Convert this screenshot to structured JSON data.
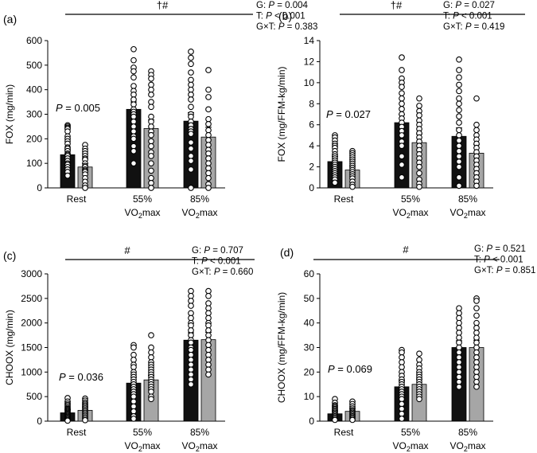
{
  "figure": {
    "colors": {
      "black_bar": "#111111",
      "grey_bar": "#a6a6a6",
      "axis": "#000000",
      "point_fill": "#ffffff"
    }
  },
  "chart_data": [
    {
      "type": "bar",
      "panel_label": "(a)",
      "ylabel": "FOX (mg/min)",
      "ylim": [
        0,
        600
      ],
      "yticks": [
        0,
        100,
        200,
        300,
        400,
        500,
        600
      ],
      "categories": [
        [
          "Rest"
        ],
        [
          "55%",
          "VO2max"
        ],
        [
          "85%",
          "VO2max"
        ]
      ],
      "series": [
        {
          "values": [
            135,
            320,
            272
          ],
          "err": [
            20,
            30,
            35
          ],
          "points": [
            [
              255,
              250,
              245,
              240,
              230,
              210,
              200,
              190,
              180,
              165,
              160,
              150,
              140,
              135,
              130,
              120,
              110,
              100,
              95,
              85,
              75,
              65,
              50
            ],
            [
              565,
              520,
              490,
              475,
              450,
              415,
              395,
              380,
              360,
              340,
              320,
              310,
              300,
              290,
              270,
              250,
              230,
              210,
              200,
              170,
              150,
              100
            ],
            [
              555,
              530,
              505,
              470,
              440,
              420,
              400,
              380,
              360,
              330,
              300,
              290,
              270,
              255,
              240,
              230,
              220,
              185,
              160,
              130,
              110,
              75,
              0
            ]
          ]
        },
        {
          "values": [
            85,
            242,
            207
          ],
          "err": [
            15,
            35,
            40
          ],
          "points": [
            [
              175,
              160,
              150,
              140,
              130,
              120,
              115,
              100,
              90,
              85,
              75,
              70,
              65,
              55,
              40,
              25,
              10,
              0
            ],
            [
              475,
              460,
              445,
              420,
              400,
              380,
              350,
              330,
              290,
              270,
              250,
              230,
              215,
              190,
              170,
              145,
              130,
              100,
              70,
              40,
              20,
              0
            ],
            [
              480,
              400,
              370,
              320,
              280,
              260,
              235,
              215,
              195,
              175,
              155,
              140,
              120,
              100,
              80,
              60,
              40,
              15,
              0
            ]
          ]
        }
      ],
      "within_annotation": "P = 0.005",
      "bracket_symbol": "†#",
      "stats": [
        "G: P = 0.004",
        "T: P < 0.001",
        "G×T: P = 0.383"
      ]
    },
    {
      "type": "bar",
      "panel_label": "(b)",
      "ylabel": "FOX (mg/FFM-kg/min)",
      "ylim": [
        0,
        14
      ],
      "yticks": [
        0,
        2,
        4,
        6,
        8,
        10,
        12,
        14
      ],
      "categories": [
        [
          "Rest"
        ],
        [
          "55%",
          "VO2max"
        ],
        [
          "85%",
          "VO2max"
        ]
      ],
      "series": [
        {
          "values": [
            2.5,
            6.2,
            4.9
          ],
          "err": [
            0.5,
            0.8,
            0.8
          ],
          "points": [
            [
              5.0,
              4.8,
              4.5,
              4.2,
              4.0,
              3.8,
              3.5,
              3.2,
              3.0,
              2.8,
              2.6,
              2.4,
              2.2,
              2.0,
              1.8,
              1.6,
              1.4,
              1.2,
              1.0,
              0.8,
              0.5
            ],
            [
              12.4,
              11.2,
              10.4,
              10.0,
              9.6,
              9.0,
              8.5,
              8.0,
              7.5,
              7.0,
              6.6,
              6.2,
              5.8,
              5.4,
              5.0,
              4.4,
              4.0,
              3.0,
              2.2,
              1.0
            ],
            [
              12.2,
              11.2,
              10.5,
              9.8,
              9.2,
              8.5,
              8.0,
              7.4,
              6.8,
              6.2,
              5.5,
              5.0,
              4.5,
              4.0,
              3.5,
              3.0,
              2.5,
              2.0,
              1.0,
              0.2
            ]
          ]
        },
        {
          "values": [
            1.7,
            4.3,
            3.3
          ],
          "err": [
            0.4,
            0.8,
            0.8
          ],
          "points": [
            [
              3.5,
              3.3,
              3.1,
              2.9,
              2.7,
              2.5,
              2.3,
              2.1,
              1.9,
              1.7,
              1.5,
              1.3,
              1.1,
              0.9,
              0.6,
              0.3,
              0.1
            ],
            [
              8.5,
              7.8,
              7.3,
              6.9,
              6.4,
              6.0,
              5.6,
              5.2,
              4.8,
              4.4,
              4.0,
              3.6,
              3.2,
              2.8,
              2.4,
              2.0,
              1.4,
              0.8,
              0.4,
              0.1
            ],
            [
              8.5,
              6.0,
              5.5,
              5.0,
              4.6,
              4.2,
              3.8,
              3.4,
              3.0,
              2.6,
              2.2,
              1.8,
              1.4,
              1.0,
              0.6,
              0.2
            ]
          ]
        }
      ],
      "within_annotation": "P = 0.027",
      "bracket_symbol": "†#",
      "stats": [
        "G: P = 0.027",
        "T: P < 0.001",
        "G×T: P = 0.419"
      ]
    },
    {
      "type": "bar",
      "panel_label": "(c)",
      "ylabel": "CHOOX (mg/min)",
      "ylim": [
        0,
        3000
      ],
      "yticks": [
        0,
        500,
        1000,
        1500,
        2000,
        2500,
        3000
      ],
      "categories": [
        [
          "Rest"
        ],
        [
          "55%",
          "VO2max"
        ],
        [
          "85%",
          "VO2max"
        ]
      ],
      "series": [
        {
          "values": [
            170,
            775,
            1650
          ],
          "err": [
            60,
            120,
            150
          ],
          "points": [
            [
              470,
              400,
              360,
              330,
              300,
              270,
              250,
              230,
              210,
              190,
              170,
              150,
              130,
              110,
              90,
              70,
              50,
              30,
              10
            ],
            [
              1550,
              1500,
              1350,
              1250,
              1150,
              1100,
              1000,
              950,
              900,
              850,
              800,
              750,
              700,
              650,
              600,
              550,
              500,
              400,
              300,
              200,
              100,
              50
            ],
            [
              2650,
              2550,
              2450,
              2350,
              2200,
              2100,
              2000,
              1950,
              1850,
              1750,
              1650,
              1600,
              1500,
              1450,
              1350,
              1250,
              1150,
              1050,
              950,
              850,
              750
            ]
          ]
        },
        {
          "values": [
            220,
            840,
            1660
          ],
          "err": [
            70,
            90,
            150
          ],
          "points": [
            [
              460,
              420,
              380,
              350,
              320,
              290,
              260,
              230,
              200,
              170,
              140,
              110,
              80,
              50,
              20
            ],
            [
              1750,
              1500,
              1400,
              1300,
              1200,
              1150,
              1100,
              1050,
              1000,
              950,
              900,
              850,
              800,
              750,
              700,
              650,
              600,
              500,
              450
            ],
            [
              2650,
              2550,
              2400,
              2300,
              2200,
              2100,
              2000,
              1950,
              1850,
              1750,
              1650,
              1550,
              1450,
              1350,
              1250,
              1150,
              1050,
              950
            ]
          ]
        }
      ],
      "within_annotation": "P = 0.036",
      "bracket_symbol": "#",
      "stats": [
        "G: P = 0.707",
        "T: P < 0.001",
        "G×T: P = 0.660"
      ]
    },
    {
      "type": "bar",
      "panel_label": "(d)",
      "ylabel": "CHOOX (mg/FFM-kg/min)",
      "ylim": [
        0,
        60
      ],
      "yticks": [
        0,
        10,
        20,
        30,
        40,
        50,
        60
      ],
      "categories": [
        [
          "Rest"
        ],
        [
          "55%",
          "VO2max"
        ],
        [
          "85%",
          "VO2max"
        ]
      ],
      "series": [
        {
          "values": [
            3,
            14,
            30
          ],
          "err": [
            1.2,
            2.5,
            2.8
          ],
          "points": [
            [
              9.0,
              7.5,
              6.5,
              6.0,
              5.5,
              5.0,
              4.5,
              4.0,
              3.5,
              3.0,
              2.5,
              2.0,
              1.5,
              1.0,
              0.5
            ],
            [
              29.0,
              28.0,
              26.0,
              24.0,
              22.0,
              20.0,
              18.5,
              17.0,
              16.0,
              15.0,
              14.0,
              13.0,
              12.0,
              11.0,
              10.0,
              9.0,
              7.0,
              5.0,
              3.0,
              1.0
            ],
            [
              46.0,
              44.0,
              42.0,
              40.0,
              38.0,
              36.0,
              34.0,
              32.0,
              30.0,
              28.0,
              26.0,
              24.0,
              22.0,
              20.0,
              18.0,
              16.0,
              14.0
            ]
          ]
        },
        {
          "values": [
            4,
            15,
            30
          ],
          "err": [
            1.2,
            2.2,
            3.0
          ],
          "points": [
            [
              8.0,
              7.0,
              6.0,
              5.2,
              4.5,
              4.0,
              3.5,
              3.0,
              2.5,
              2.0,
              1.5,
              1.0,
              0.5
            ],
            [
              27.5,
              25.0,
              23.0,
              21.5,
              20.0,
              19.0,
              18.0,
              17.0,
              16.0,
              15.0,
              14.0,
              13.0,
              12.0,
              11.0,
              10.0,
              9.0
            ],
            [
              50.0,
              49.0,
              46.0,
              43.0,
              40.0,
              38.0,
              36.0,
              34.0,
              32.0,
              30.0,
              28.0,
              26.0,
              24.0,
              22.0,
              20.0,
              18.0,
              16.0,
              14.0
            ]
          ]
        }
      ],
      "within_annotation": "P = 0.069",
      "bracket_symbol": "#",
      "stats": [
        "G: P = 0.521",
        "T: P < 0.001",
        "G×T: P = 0.851"
      ]
    }
  ]
}
